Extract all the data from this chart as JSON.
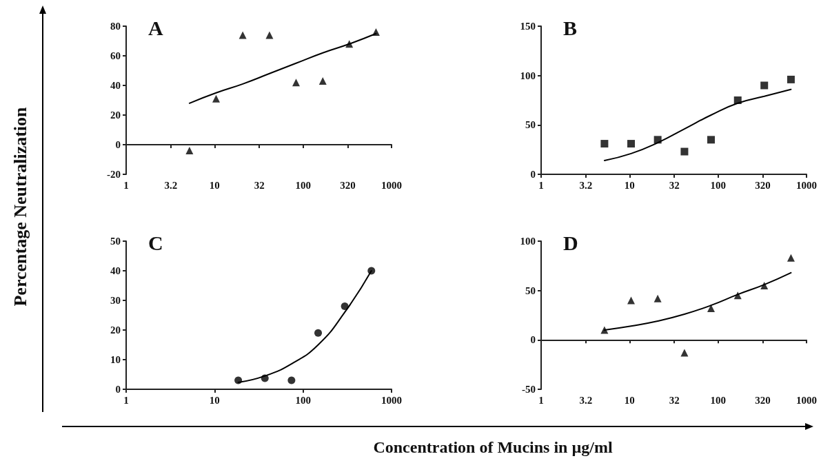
{
  "chart_data": [
    {
      "type": "scatter",
      "title": "A",
      "xlabel": "Concentration of Mucins in µg/ml",
      "ylabel": "Percentage Neutralization",
      "log": "x",
      "marker": "triangle",
      "xlim": [
        1,
        1000
      ],
      "xticks": [
        1,
        3.2,
        10,
        32,
        100,
        320,
        1000
      ],
      "ylim": [
        -20,
        80
      ],
      "yticks": [
        -20,
        0,
        20,
        40,
        60,
        80
      ],
      "series": [
        {
          "color": "#000000",
          "x": [
            5.2,
            10.4,
            20.8,
            41.7,
            83.3,
            167,
            333,
            667
          ],
          "values": [
            -4,
            31,
            74,
            74,
            42,
            43,
            68,
            76
          ]
        },
        {
          "type": "line",
          "marker": "none",
          "color": "#000000",
          "x": [
            5.2,
            10.4,
            20.8,
            41.7,
            83.3,
            167,
            333,
            667
          ],
          "values": [
            28,
            35,
            41,
            48,
            55,
            62,
            68,
            75
          ]
        }
      ]
    },
    {
      "type": "scatter",
      "title": "B",
      "log": "x",
      "marker": "square",
      "xlim": [
        1,
        1000
      ],
      "xticks": [
        1,
        3.2,
        10,
        32,
        100,
        320,
        1000
      ],
      "ylim": [
        0,
        150
      ],
      "yticks": [
        0,
        50,
        100,
        150
      ],
      "series": [
        {
          "color": "#000000",
          "x": [
            5.2,
            10.4,
            20.8,
            41.7,
            83.3,
            167,
            333,
            667
          ],
          "values": [
            31,
            31,
            35,
            23,
            35,
            75,
            90,
            96
          ]
        },
        {
          "type": "line",
          "marker": "none",
          "color": "#000000",
          "x": [
            5.2,
            10.4,
            20.8,
            41.7,
            83.3,
            167,
            333,
            667
          ],
          "values": [
            14,
            21,
            32,
            46,
            60,
            72,
            79,
            86
          ]
        }
      ]
    },
    {
      "type": "scatter",
      "title": "C",
      "log": "x",
      "marker": "circle",
      "xlim": [
        1,
        1000
      ],
      "xticks": [
        1,
        10,
        100,
        1000
      ],
      "ylim": [
        0,
        50
      ],
      "yticks": [
        0,
        10,
        20,
        30,
        40,
        50
      ],
      "series": [
        {
          "color": "#000000",
          "x": [
            18.5,
            37,
            74,
            148,
            296,
            592
          ],
          "values": [
            3,
            3.7,
            3,
            19,
            28,
            40
          ]
        },
        {
          "type": "line",
          "marker": "none",
          "color": "#000000",
          "x": [
            18.5,
            37,
            74,
            148,
            296,
            592
          ],
          "values": [
            2.3,
            4.5,
            8.6,
            15,
            26,
            40
          ]
        }
      ]
    },
    {
      "type": "scatter",
      "title": "D",
      "log": "x",
      "marker": "triangle",
      "xlim": [
        1,
        1000
      ],
      "xticks": [
        1,
        3.2,
        10,
        32,
        100,
        320,
        1000
      ],
      "ylim": [
        -50,
        100
      ],
      "yticks": [
        -50,
        0,
        50,
        100
      ],
      "series": [
        {
          "color": "#000000",
          "x": [
            5.2,
            10.4,
            20.8,
            41.7,
            83.3,
            167,
            333,
            667
          ],
          "values": [
            10,
            40,
            42,
            -13,
            32,
            45,
            55,
            83
          ]
        },
        {
          "type": "line",
          "marker": "none",
          "color": "#000000",
          "x": [
            5.2,
            10.4,
            20.8,
            41.7,
            83.3,
            167,
            333,
            667
          ],
          "values": [
            10,
            14,
            19,
            26,
            35,
            46,
            56,
            68
          ]
        }
      ]
    }
  ]
}
